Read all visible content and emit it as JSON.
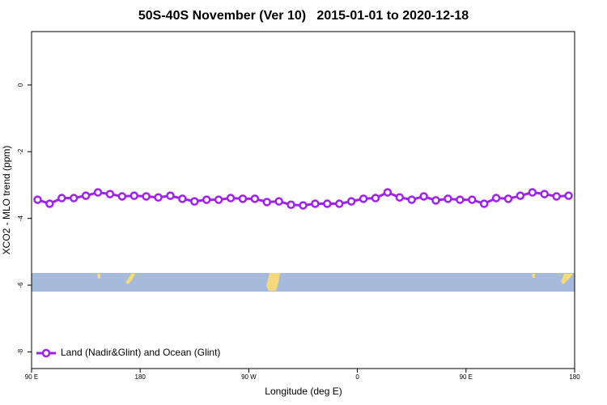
{
  "chart_data": {
    "type": "line",
    "title": "50S-40S November (Ver 10)   2015-01-01 to 2020-12-18",
    "xlabel": "Longitude (deg E)",
    "ylabel": "XCO2 - MLO trend (ppm)",
    "x": [
      95,
      105,
      115,
      125,
      135,
      145,
      155,
      165,
      175,
      185,
      195,
      205,
      215,
      225,
      235,
      245,
      255,
      265,
      275,
      285,
      295,
      305,
      315,
      325,
      335,
      345,
      355,
      365,
      375,
      385,
      395,
      405,
      415,
      425,
      435,
      445,
      455,
      465,
      475,
      485,
      495,
      505,
      515,
      525,
      535
    ],
    "series": [
      {
        "name": "Land (Nadir&Glint) and Ocean (Glint)",
        "color": "#a020f0",
        "values": [
          -3.44,
          -3.56,
          -3.39,
          -3.39,
          -3.32,
          -3.22,
          -3.27,
          -3.34,
          -3.32,
          -3.34,
          -3.37,
          -3.32,
          -3.41,
          -3.49,
          -3.44,
          -3.44,
          -3.39,
          -3.41,
          -3.41,
          -3.51,
          -3.49,
          -3.59,
          -3.61,
          -3.56,
          -3.56,
          -3.56,
          -3.49,
          -3.41,
          -3.39,
          -3.22,
          -3.37,
          -3.44,
          -3.34,
          -3.46,
          -3.41,
          -3.44,
          -3.44,
          -3.56,
          -3.39,
          -3.41,
          -3.32,
          -3.22,
          -3.27,
          -3.34,
          -3.32
        ]
      }
    ],
    "xlim": [
      90,
      540
    ],
    "xticks": [
      {
        "value": 90,
        "label": "90 E"
      },
      180,
      {
        "value": 270,
        "label": "90 W"
      },
      {
        "value": 360,
        "label": "0"
      },
      {
        "value": 450,
        "label": "90 E"
      },
      {
        "value": 540,
        "label": "180"
      }
    ],
    "ylim": [
      -8.5,
      1.6
    ],
    "yticks": [
      -8,
      -6,
      -4,
      -2,
      0
    ],
    "legend": "bottom-left"
  }
}
